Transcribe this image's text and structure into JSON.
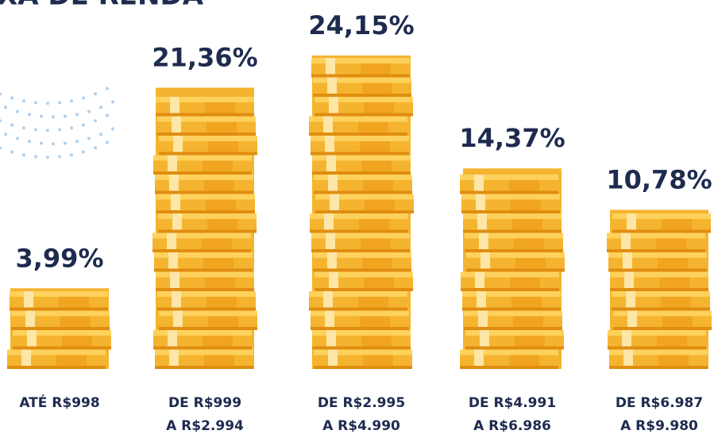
{
  "chart_data": {
    "type": "coin-stack",
    "title": "XA DE RENDA",
    "categories": [
      [
        "ATÉ R$998"
      ],
      [
        "DE R$999",
        "A R$2.994"
      ],
      [
        "DE R$2.995",
        "A R$4.990"
      ],
      [
        "DE R$4.991",
        "A R$6.986"
      ],
      [
        "DE R$6.987",
        "A R$9.980"
      ]
    ],
    "values": [
      3.99,
      21.36,
      24.15,
      14.37,
      10.78
    ],
    "value_labels": [
      "3,99%",
      "21,36%",
      "24,15%",
      "14,37%",
      "10,78%"
    ],
    "color": "#f5b430",
    "ylim": [
      -3,
      26
    ]
  }
}
